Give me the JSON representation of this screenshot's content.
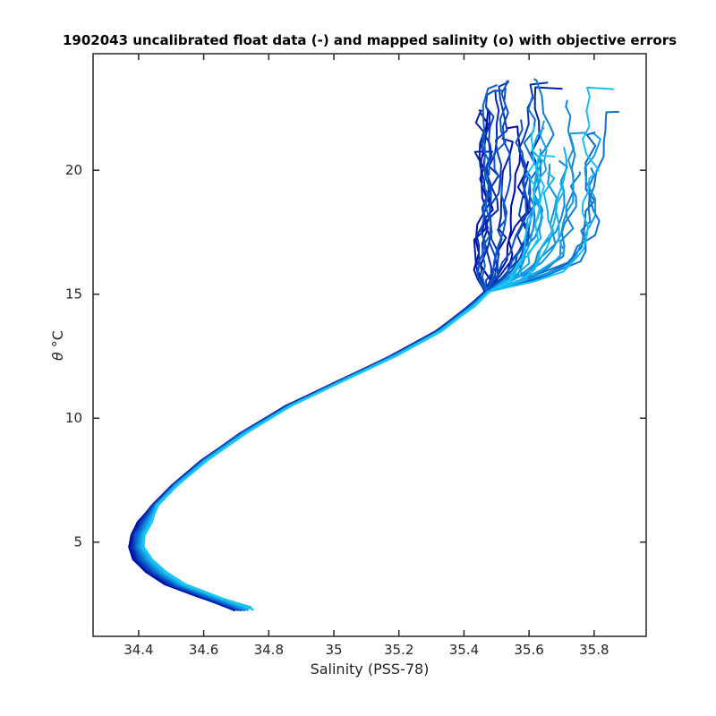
{
  "chart_data": {
    "type": "line",
    "title": "1902043 uncalibrated float data (-) and mapped salinity (o) with objective errors",
    "xlabel": "Salinity (PSS-78)",
    "ylabel_symbol": "θ",
    "ylabel_unit": "°C",
    "xlim": [
      34.26,
      35.96
    ],
    "ylim": [
      1.2,
      24.7
    ],
    "x_ticks": [
      34.4,
      34.6,
      34.8,
      35,
      35.2,
      35.4,
      35.6,
      35.8
    ],
    "x_tick_labels": [
      "34.4",
      "34.6",
      "34.8",
      "35",
      "35.2",
      "35.4",
      "35.6",
      "35.8"
    ],
    "y_ticks": [
      5,
      10,
      15,
      20
    ],
    "y_tick_labels": [
      "5",
      "10",
      "15",
      "20"
    ],
    "grid": false,
    "legend": "none",
    "color_start": "#0000a0",
    "color_end": "#19c8f5",
    "profile_count": 40,
    "core_profile": {
      "s": [
        34.71,
        34.6,
        34.5,
        34.44,
        34.4,
        34.385,
        34.39,
        34.41,
        34.45,
        34.51,
        34.6,
        34.72,
        34.86,
        35.02,
        35.18,
        35.32,
        35.42,
        35.47
      ],
      "t": [
        2.3,
        2.8,
        3.3,
        3.8,
        4.3,
        4.8,
        5.3,
        5.8,
        6.5,
        7.3,
        8.3,
        9.4,
        10.5,
        11.5,
        12.5,
        13.5,
        14.5,
        15.1
      ]
    },
    "upper_cluster": {
      "dark_profiles_salinity_range": [
        35.45,
        35.62
      ],
      "light_profiles_salinity_range": [
        35.6,
        35.85
      ],
      "temperature_range": [
        15.0,
        23.7
      ]
    }
  }
}
